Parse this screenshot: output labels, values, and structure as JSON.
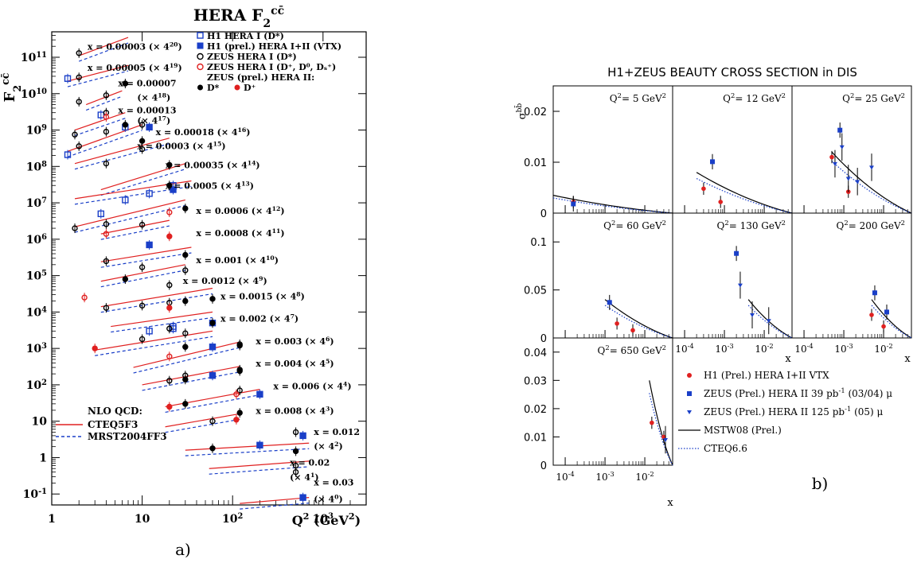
{
  "left": {
    "title_main": "HERA F",
    "title_sub": "2",
    "title_sup": "cc̄",
    "ylabel_main": "F",
    "ylabel_sub": "2",
    "ylabel_sup": "cc̄",
    "xlabel_main": "Q",
    "xlabel_sup": "2",
    "xlabel_unit": "(GeV",
    "xlabel_unit_sup": "2",
    "xlabel_unit_close": ")",
    "caption": "a)",
    "y_ticks": [
      {
        "base": "10",
        "exp": "11",
        "value": 100000000000.0
      },
      {
        "base": "10",
        "exp": "10",
        "value": 10000000000.0
      },
      {
        "base": "10",
        "exp": "9",
        "value": 1000000000.0
      },
      {
        "base": "10",
        "exp": "8",
        "value": 100000000.0
      },
      {
        "base": "10",
        "exp": "7",
        "value": 10000000.0
      },
      {
        "base": "10",
        "exp": "6",
        "value": 1000000.0
      },
      {
        "base": "10",
        "exp": "5",
        "value": 100000.0
      },
      {
        "base": "10",
        "exp": "4",
        "value": 10000.0
      },
      {
        "base": "10",
        "exp": "3",
        "value": 1000.0
      },
      {
        "base": "10",
        "exp": "2",
        "value": 100
      },
      {
        "base": "10",
        "exp": "",
        "value": 10
      },
      {
        "base": "1",
        "exp": "",
        "value": 1
      },
      {
        "base": "10",
        "exp": "-1",
        "value": 0.1
      }
    ],
    "x_ticks": [
      {
        "base": "1",
        "exp": "",
        "value": 1
      },
      {
        "base": "10",
        "exp": "",
        "value": 10
      },
      {
        "base": "10",
        "exp": "2",
        "value": 100
      },
      {
        "base": "10",
        "exp": "3",
        "value": 1000
      }
    ],
    "bin_labels": [
      {
        "x": "x = 0.00003",
        "scale": "(× 4",
        "exp": "20",
        "q2": 2.2,
        "y": 160000000000.0
      },
      {
        "x": "x = 0.00005",
        "scale": "(× 4",
        "exp": "19",
        "q2": 2.2,
        "y": 42000000000.0
      },
      {
        "x": "x = 0.00007",
        "scale": "",
        "exp": "",
        "q2": 4.8,
        "y": 16000000000.0
      },
      {
        "x": "",
        "scale": "(× 4",
        "exp": "18",
        "q2": 7.8,
        "y": 6400000000.0
      },
      {
        "x": "x = 0.00013",
        "scale": "",
        "exp": "",
        "q2": 4.8,
        "y": 2900000000.0
      },
      {
        "x": "",
        "scale": "(× 4",
        "exp": "17",
        "q2": 7.8,
        "y": 1500000000.0
      },
      {
        "x": "x = 0.00018",
        "scale": "(× 4",
        "exp": "16",
        "q2": 12.5,
        "y": 720000000.0
      },
      {
        "x": "x = 0.0003",
        "scale": "(× 4",
        "exp": "15",
        "q2": 7.8,
        "y": 300000000.0
      },
      {
        "x": "x = 0.00035",
        "scale": "(× 4",
        "exp": "14",
        "q2": 16,
        "y": 90000000.0
      },
      {
        "x": "x = 0.0005",
        "scale": "(× 4",
        "exp": "13",
        "q2": 16,
        "y": 24000000.0
      },
      {
        "x": "x = 0.0006",
        "scale": "(× 4",
        "exp": "12",
        "q2": 35,
        "y": 5000000.0
      },
      {
        "x": "x = 0.0008",
        "scale": "(× 4",
        "exp": "11",
        "q2": 35,
        "y": 1200000.0
      },
      {
        "x": "x = 0.001",
        "scale": "(× 4",
        "exp": "10",
        "q2": 35,
        "y": 220000.0
      },
      {
        "x": "x = 0.0012",
        "scale": "(× 4",
        "exp": "9",
        "q2": 25,
        "y": 60000.0
      },
      {
        "x": "x = 0.0015",
        "scale": "(× 4",
        "exp": "8",
        "q2": 65,
        "y": 22000.0
      },
      {
        "x": "x = 0.002",
        "scale": "(× 4",
        "exp": "7",
        "q2": 65,
        "y": 5500.0
      },
      {
        "x": "x = 0.003",
        "scale": "(× 4",
        "exp": "6",
        "q2": 160,
        "y": 1300.0
      },
      {
        "x": "x = 0.004",
        "scale": "(× 4",
        "exp": "5",
        "q2": 160,
        "y": 320.0
      },
      {
        "x": "x = 0.006",
        "scale": "(× 4",
        "exp": "4",
        "q2": 250,
        "y": 75
      },
      {
        "x": "x = 0.008",
        "scale": "(× 4",
        "exp": "3",
        "q2": 160,
        "y": 16
      },
      {
        "x": "x = 0.012",
        "scale": "",
        "exp": "",
        "q2": 700,
        "y": 4.2
      },
      {
        "x": "",
        "scale": "(× 4",
        "exp": "2",
        "q2": 700,
        "y": 1.7
      },
      {
        "x": "x = 0.02",
        "scale": "",
        "exp": "",
        "q2": 380,
        "y": 0.6
      },
      {
        "x": "",
        "scale": "(× 4",
        "exp": "1",
        "q2": 380,
        "y": 0.24
      },
      {
        "x": "x = 0.03",
        "scale": "",
        "exp": "",
        "q2": 700,
        "y": 0.17
      },
      {
        "x": "",
        "scale": "(× 4",
        "exp": "0",
        "q2": 700,
        "y": 0.06
      }
    ],
    "legend_top": [
      {
        "marker": "open-square",
        "color": "#1a3fc8",
        "text": "H1 HERA I (D*)"
      },
      {
        "marker": "filled-square",
        "color": "#1a3fc8",
        "text": "H1 (prel.) HERA I+II  (VTX)"
      },
      {
        "marker": "open-circle",
        "color": "#000000",
        "text": "ZEUS HERA I (D*)"
      },
      {
        "marker": "open-circle",
        "color": "#e02020",
        "text": "ZEUS HERA I (D⁺, D⁰, Dₛ⁺)"
      },
      {
        "marker": "none",
        "color": "#000000",
        "text": "ZEUS (prel.) HERA II:"
      }
    ],
    "legend_last": {
      "a_label": "D*",
      "b_label": "D⁺"
    },
    "legend_theory": {
      "title": "NLO QCD:",
      "items": [
        {
          "style": "solid",
          "color": "#e02020",
          "text": "CTEQ5F3"
        },
        {
          "style": "dashed",
          "color": "#1a3fc8",
          "text": "MRST2004FF3"
        }
      ]
    }
  },
  "right": {
    "title": "H1+ZEUS BEAUTY CROSS SECTION in DIS",
    "ylabel": "σ",
    "ylabel_sup": "bb̄",
    "caption": "b)",
    "xlabel": "x",
    "panels": [
      {
        "label": "Q",
        "label_sup": "2",
        "value": "= 5 GeV",
        "unit_sup": "2"
      },
      {
        "label": "Q",
        "label_sup": "2",
        "value": "= 12 GeV",
        "unit_sup": "2"
      },
      {
        "label": "Q",
        "label_sup": "2",
        "value": "= 25 GeV",
        "unit_sup": "2"
      },
      {
        "label": "Q",
        "label_sup": "2",
        "value": "= 60 GeV",
        "unit_sup": "2"
      },
      {
        "label": "Q",
        "label_sup": "2",
        "value": "= 130 GeV",
        "unit_sup": "2"
      },
      {
        "label": "Q",
        "label_sup": "2",
        "value": "= 200 GeV",
        "unit_sup": "2"
      },
      {
        "label": "Q",
        "label_sup": "2",
        "value": "= 650 GeV",
        "unit_sup": "2"
      }
    ],
    "y_ticks_row1": [
      "0.02",
      "0.01",
      "0"
    ],
    "y_ticks_row2": [
      "0.1",
      "0.05",
      "0"
    ],
    "y_ticks_row3": [
      "0.04",
      "0.03",
      "0.02",
      "0.01",
      "0"
    ],
    "x_ticks": [
      {
        "base": "10",
        "exp": "-4"
      },
      {
        "base": "10",
        "exp": "-3"
      },
      {
        "base": "10",
        "exp": "-2"
      }
    ],
    "legend": [
      {
        "marker": "dot",
        "color": "#e02020",
        "text": "H1 (Prel.) HERA I+II  VTX"
      },
      {
        "marker": "square",
        "color": "#1a3fc8",
        "text": "ZEUS (Prel.) HERA II 39 pb",
        "sup": "-1",
        "tail": " (03/04) μ"
      },
      {
        "marker": "triangle",
        "color": "#1a3fc8",
        "text": "ZEUS (Prel.) HERA II 125 pb",
        "sup": "-1",
        "tail": " (05) μ"
      },
      {
        "marker": "solid",
        "color": "#000000",
        "text": "MSTW08 (Prel.)"
      },
      {
        "marker": "dotted",
        "color": "#1a3fc8",
        "text": "CTEQ6.6"
      }
    ]
  },
  "chart_data": [
    {
      "type": "scatter",
      "title": "HERA F2 cc̄",
      "xlabel": "Q² (GeV²)",
      "ylabel": "F2 cc̄",
      "xscale": "log",
      "yscale": "log",
      "xlim": [
        1,
        3000
      ],
      "ylim": [
        0.05,
        500000000000.0
      ],
      "series": [
        {
          "name": "H1 HERA I (D*)",
          "points": [
            [
              1.5,
              26000000000.0
            ],
            [
              3.5,
              2600000000.0
            ],
            [
              6.5,
              1200000000.0
            ],
            [
              1.5,
              210000000.0
            ],
            [
              12,
              18000000.0
            ],
            [
              22,
              30000000.0
            ],
            [
              3.5,
              5000000.0
            ],
            [
              6.5,
              12000000.0
            ],
            [
              12,
              3000.0
            ],
            [
              22,
              4000.0
            ],
            [
              22,
              3500.0
            ]
          ]
        },
        {
          "name": "H1 (prel.) HERA I+II (VTX)",
          "points": [
            [
              12,
              1200000000.0
            ],
            [
              22,
              23000000.0
            ],
            [
              12,
              700000.0
            ],
            [
              60,
              5000.0
            ],
            [
              60,
              1100.0
            ],
            [
              60,
              180
            ],
            [
              200,
              55
            ],
            [
              600,
              4
            ],
            [
              200,
              2.2
            ],
            [
              600,
              0.08
            ]
          ]
        },
        {
          "name": "ZEUS HERA I (D*)",
          "points": [
            [
              2,
              130000000000.0
            ],
            [
              2,
              28000000000.0
            ],
            [
              4,
              9000000000.0
            ],
            [
              2,
              6000000000.0
            ],
            [
              4,
              3000000000.0
            ],
            [
              1.8,
              750000000.0
            ],
            [
              4,
              900000000.0
            ],
            [
              10,
              1400000000.0
            ],
            [
              2,
              360000000.0
            ],
            [
              4,
              120000000.0
            ],
            [
              10,
              300000000.0
            ],
            [
              1.8,
              2000000.0
            ],
            [
              4,
              2600000.0
            ],
            [
              10,
              2500000.0
            ],
            [
              4,
              250000.0
            ],
            [
              10,
              170000.0
            ],
            [
              20,
              55000.0
            ],
            [
              30,
              140000.0
            ],
            [
              4,
              13000.0
            ],
            [
              10,
              15000.0
            ],
            [
              20,
              18000.0
            ],
            [
              20,
              3500.0
            ],
            [
              30,
              2600.0
            ],
            [
              10,
              1800.0
            ],
            [
              20,
              130.0
            ],
            [
              30,
              180.0
            ],
            [
              120,
              1300.0
            ],
            [
              120,
              260
            ],
            [
              120,
              70
            ],
            [
              60,
              10
            ],
            [
              500,
              5
            ],
            [
              500,
              0.4
            ],
            [
              500,
              0.6
            ]
          ]
        },
        {
          "name": "ZEUS HERA I (D+, D0, Ds+)",
          "points": [
            [
              4,
              2300000000.0
            ],
            [
              4,
              1400000.0
            ],
            [
              20,
              5500000.0
            ],
            [
              20,
              600
            ],
            [
              110,
              55
            ],
            [
              2.3,
              25000.0
            ]
          ]
        },
        {
          "name": "ZEUS (prel.) HERA II D*",
          "points": [
            [
              6.5,
              19000000000.0
            ],
            [
              6.5,
              1400000000.0
            ],
            [
              10,
              500000000.0
            ],
            [
              20,
              110000000.0
            ],
            [
              20,
              30000000.0
            ],
            [
              30,
              7000000.0
            ],
            [
              30,
              370000.0
            ],
            [
              6.5,
              80000.0
            ],
            [
              30,
              20000.0
            ],
            [
              60,
              23000.0
            ],
            [
              60,
              5000.0
            ],
            [
              30,
              1100.0
            ],
            [
              120,
              1200.0
            ],
            [
              30,
              140
            ],
            [
              120,
              240
            ],
            [
              30,
              30
            ],
            [
              120,
              17
            ],
            [
              60,
              1.8
            ],
            [
              500,
              1.5
            ],
            [
              500,
              0.04
            ]
          ]
        },
        {
          "name": "ZEUS (prel.) HERA II D+",
          "points": [
            [
              3,
              1000.0
            ],
            [
              20,
              13000.0
            ],
            [
              20,
              1200000.0
            ],
            [
              20,
              25
            ],
            [
              110,
              11
            ]
          ]
        }
      ]
    },
    {
      "type": "scatter",
      "title": "H1+ZEUS BEAUTY CROSS SECTION in DIS",
      "xlabel": "x",
      "ylabel": "σ bb̄",
      "xscale": "log",
      "panels": [
        {
          "q2": 5,
          "ylim": [
            0,
            0.025
          ],
          "h1": [
            [
              0.00016,
              0.0022
            ]
          ],
          "zeus39": [
            [
              0.00016,
              0.0018
            ]
          ],
          "zeus125": []
        },
        {
          "q2": 12,
          "ylim": [
            0,
            0.025
          ],
          "h1": [
            [
              0.0003,
              0.0048
            ],
            [
              0.0008,
              0.0022
            ]
          ],
          "zeus39": [
            [
              0.0005,
              0.0101
            ]
          ],
          "zeus125": []
        },
        {
          "q2": 25,
          "ylim": [
            0,
            0.025
          ],
          "h1": [
            [
              0.0005,
              0.011
            ],
            [
              0.0013,
              0.0042
            ]
          ],
          "zeus39": [
            [
              0.0008,
              0.0163
            ]
          ],
          "zeus125": [
            [
              0.0006,
              0.0097
            ],
            [
              0.0009,
              0.013
            ],
            [
              0.0013,
              0.0068
            ],
            [
              0.0022,
              0.0062
            ],
            [
              0.005,
              0.009
            ]
          ]
        },
        {
          "q2": 60,
          "ylim": [
            0,
            0.13
          ],
          "h1": [
            [
              0.002,
              0.015
            ],
            [
              0.005,
              0.008
            ]
          ],
          "zeus39": [
            [
              0.0013,
              0.037
            ]
          ],
          "zeus125": []
        },
        {
          "q2": 130,
          "ylim": [
            0,
            0.13
          ],
          "h1": [],
          "zeus39": [
            [
              0.002,
              0.088
            ]
          ],
          "zeus125": [
            [
              0.0025,
              0.055
            ],
            [
              0.005,
              0.024
            ],
            [
              0.013,
              0.018
            ]
          ]
        },
        {
          "q2": 200,
          "ylim": [
            0,
            0.13
          ],
          "h1": [
            [
              0.005,
              0.024
            ],
            [
              0.01,
              0.012
            ]
          ],
          "zeus39": [
            [
              0.006,
              0.047
            ],
            [
              0.012,
              0.027
            ]
          ],
          "zeus125": []
        },
        {
          "q2": 650,
          "ylim": [
            0,
            0.045
          ],
          "h1": [
            [
              0.015,
              0.015
            ],
            [
              0.03,
              0.01
            ]
          ],
          "zeus39": [],
          "zeus125": [
            [
              0.033,
              0.009
            ]
          ]
        }
      ]
    }
  ]
}
